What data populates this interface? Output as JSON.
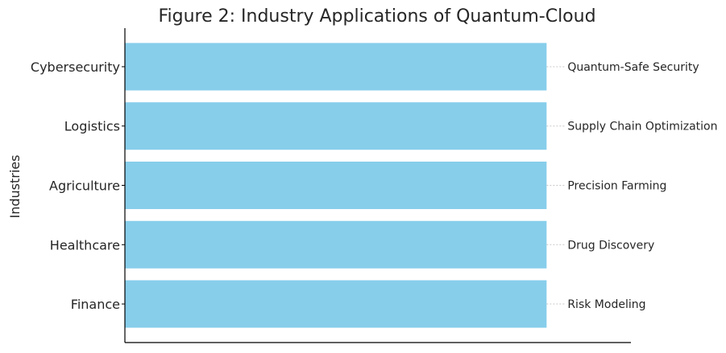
{
  "chart_data": {
    "type": "bar",
    "orientation": "horizontal",
    "title": "Figure 2: Industry Applications of Quantum-Cloud",
    "ylabel": "Industries",
    "xlabel": "",
    "categories": [
      "Finance",
      "Healthcare",
      "Agriculture",
      "Logistics",
      "Cybersecurity"
    ],
    "values": [
      1,
      1,
      1,
      1,
      1
    ],
    "annotations": [
      "Risk Modeling",
      "Drug Discovery",
      "Precision Farming",
      "Supply Chain Optimization",
      "Quantum-Safe Security"
    ],
    "xlim": [
      0,
      1.2
    ],
    "grid": false,
    "colors": {
      "bar": "#87ceeb",
      "axis": "#000000",
      "text": "#262626",
      "connector": "#c8c8c8"
    }
  }
}
